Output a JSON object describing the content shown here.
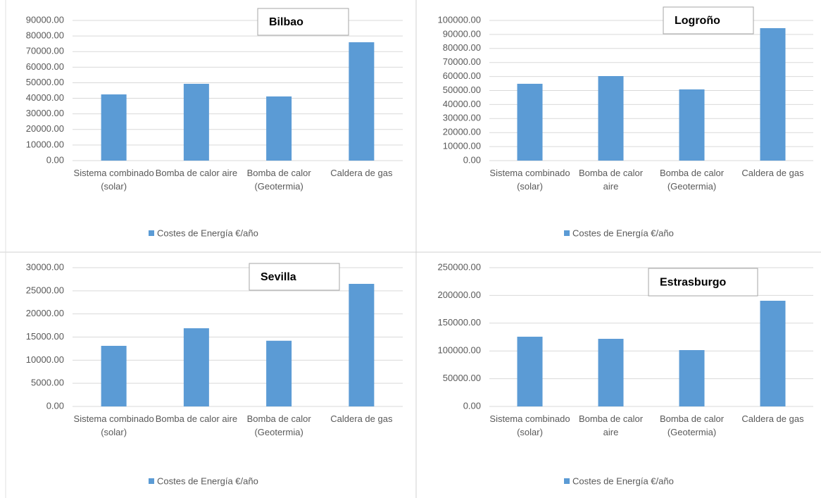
{
  "chart_data": [
    {
      "type": "bar",
      "title": "Bilbao",
      "categories": [
        "Sistema combinado (solar)",
        "Bomba de calor aire",
        "Bomba de calor (Geotermia)",
        "Caldera de gas"
      ],
      "series": [
        {
          "name": "Costes de Energía €/año",
          "color": "#5b9bd5",
          "values": [
            42500,
            49300,
            41200,
            76000
          ]
        }
      ],
      "ylim": [
        0,
        90000
      ],
      "yticks": [
        {
          "value": 0,
          "label": "0.00"
        },
        {
          "value": 10000,
          "label": "10000.00"
        },
        {
          "value": 20000,
          "label": "20000.00"
        },
        {
          "value": 30000,
          "label": "30000.00"
        },
        {
          "value": 40000,
          "label": "40000.00"
        },
        {
          "value": 50000,
          "label": "50000.00"
        },
        {
          "value": 60000,
          "label": "60000.00"
        },
        {
          "value": 70000,
          "label": "70000.00"
        },
        {
          "value": 80000,
          "label": "80000.00"
        },
        {
          "value": 90000,
          "label": "90000.00"
        }
      ],
      "grid": true,
      "legend": "bottom"
    },
    {
      "type": "bar",
      "title": "Logroño",
      "categories": [
        "Sistema combinado (solar)",
        "Bomba de calor aire",
        "Bomba de calor (Geotermia)",
        "Caldera de gas"
      ],
      "series": [
        {
          "name": "Costes de Energía €/año",
          "color": "#5b9bd5",
          "values": [
            54800,
            60300,
            50800,
            94500
          ]
        }
      ],
      "ylim": [
        0,
        100000
      ],
      "yticks": [
        {
          "value": 0,
          "label": "0.00"
        },
        {
          "value": 10000,
          "label": "10000.00"
        },
        {
          "value": 20000,
          "label": "20000.00"
        },
        {
          "value": 30000,
          "label": "30000.00"
        },
        {
          "value": 40000,
          "label": "40000.00"
        },
        {
          "value": 50000,
          "label": "50000.00"
        },
        {
          "value": 60000,
          "label": "60000.00"
        },
        {
          "value": 70000,
          "label": "70000.00"
        },
        {
          "value": 80000,
          "label": "80000.00"
        },
        {
          "value": 90000,
          "label": "90000.00"
        },
        {
          "value": 100000,
          "label": "100000.00"
        }
      ],
      "grid": true,
      "legend": "bottom"
    },
    {
      "type": "bar",
      "title": "Sevilla",
      "categories": [
        "Sistema combinado (solar)",
        "Bomba de calor aire",
        "Bomba de calor (Geotermia)",
        "Caldera de gas"
      ],
      "series": [
        {
          "name": "Costes de Energía €/año",
          "color": "#5b9bd5",
          "values": [
            13100,
            16900,
            14200,
            26500
          ]
        }
      ],
      "ylim": [
        0,
        30000
      ],
      "yticks": [
        {
          "value": 0,
          "label": "0.00"
        },
        {
          "value": 5000,
          "label": "5000.00"
        },
        {
          "value": 10000,
          "label": "10000.00"
        },
        {
          "value": 15000,
          "label": "15000.00"
        },
        {
          "value": 20000,
          "label": "20000.00"
        },
        {
          "value": 25000,
          "label": "25000.00"
        },
        {
          "value": 30000,
          "label": "30000.00"
        }
      ],
      "grid": true,
      "legend": "bottom"
    },
    {
      "type": "bar",
      "title": "Estrasburgo",
      "categories": [
        "Sistema combinado (solar)",
        "Bomba de calor aire",
        "Bomba de calor (Geotermia)",
        "Caldera de gas"
      ],
      "series": [
        {
          "name": "Costes de Energía €/año",
          "color": "#5b9bd5",
          "values": [
            125600,
            121800,
            101500,
            190400
          ]
        }
      ],
      "ylim": [
        0,
        250000
      ],
      "yticks": [
        {
          "value": 0,
          "label": "0.00"
        },
        {
          "value": 50000,
          "label": "50000.00"
        },
        {
          "value": 100000,
          "label": "100000.00"
        },
        {
          "value": 150000,
          "label": "150000.00"
        },
        {
          "value": 200000,
          "label": "200000.00"
        },
        {
          "value": 250000,
          "label": "250000.00"
        }
      ],
      "grid": true,
      "legend": "bottom"
    }
  ]
}
